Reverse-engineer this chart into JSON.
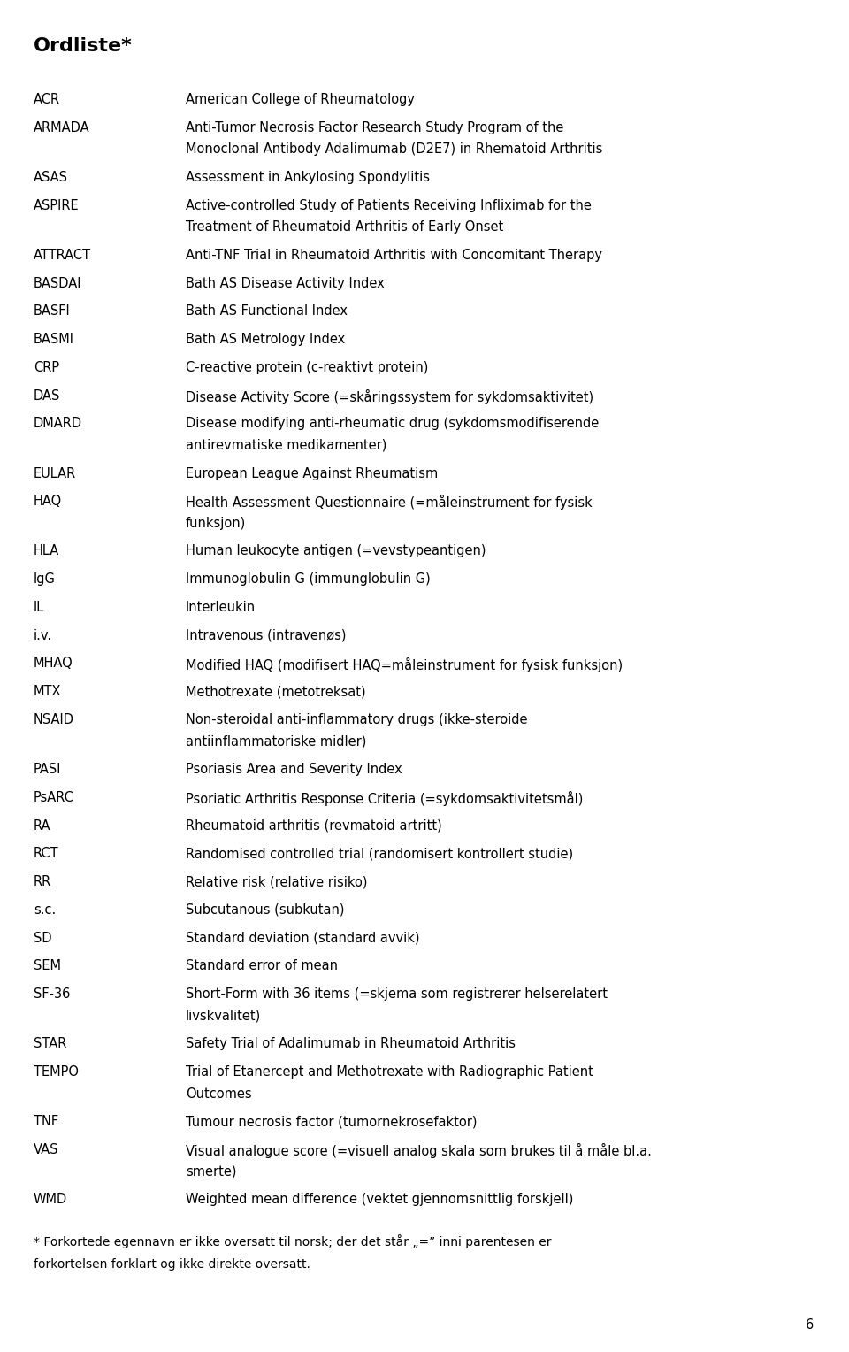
{
  "title": "Ordliste*",
  "page_number": "6",
  "background_color": "#ffffff",
  "text_color": "#000000",
  "title_fontsize": 16,
  "body_fontsize": 10.5,
  "entries": [
    [
      "ACR",
      "American College of Rheumatology"
    ],
    [
      "ARMADA",
      "Anti-Tumor Necrosis Factor Research Study Program of the\nMonoclonal Antibody Adalimumab (D2E7) in Rhematoid Arthritis"
    ],
    [
      "ASAS",
      "Assessment in Ankylosing Spondylitis"
    ],
    [
      "ASPIRE",
      "Active-controlled Study of Patients Receiving Infliximab for the\nTreatment of Rheumatoid Arthritis of Early Onset"
    ],
    [
      "ATTRACT",
      "Anti-TNF Trial in Rheumatoid Arthritis with Concomitant Therapy"
    ],
    [
      "BASDAI",
      "Bath AS Disease Activity Index"
    ],
    [
      "BASFI",
      "Bath AS Functional Index"
    ],
    [
      "BASMI",
      "Bath AS Metrology Index"
    ],
    [
      "CRP",
      "C-reactive protein (c-reaktivt protein)"
    ],
    [
      "DAS",
      "Disease Activity Score (=skåringssystem for sykdomsaktivitet)"
    ],
    [
      "DMARD",
      "Disease modifying anti-rheumatic drug (sykdomsmodifiserende\nantirevmatiske medikamenter)"
    ],
    [
      "EULAR",
      "European League Against Rheumatism"
    ],
    [
      "HAQ",
      "Health Assessment Questionnaire (=måleinstrument for fysisk\nfunksjon)"
    ],
    [
      "HLA",
      "Human leukocyte antigen (=vevstypeantigen)"
    ],
    [
      "IgG",
      "Immunoglobulin G (immunglobulin G)"
    ],
    [
      "IL",
      "Interleukin"
    ],
    [
      "i.v.",
      "Intravenous (intravenøs)"
    ],
    [
      "MHAQ",
      "Modified HAQ (modifisert HAQ=måleinstrument for fysisk funksjon)"
    ],
    [
      "MTX",
      "Methotrexate (metotreksat)"
    ],
    [
      "NSAID",
      "Non-steroidal anti-inflammatory drugs (ikke-steroide\nantiinflammatoriske midler)"
    ],
    [
      "PASI",
      "Psoriasis Area and Severity Index"
    ],
    [
      "PsARC",
      "Psoriatic Arthritis Response Criteria (=sykdomsaktivitetsmål)"
    ],
    [
      "RA",
      "Rheumatoid arthritis (revmatoid artritt)"
    ],
    [
      "RCT",
      "Randomised controlled trial (randomisert kontrollert studie)"
    ],
    [
      "RR",
      "Relative risk (relative risiko)"
    ],
    [
      "s.c.",
      "Subcutanous (subkutan)"
    ],
    [
      "SD",
      "Standard deviation (standard avvik)"
    ],
    [
      "SEM",
      "Standard error of mean"
    ],
    [
      "SF-36",
      "Short-Form with 36 items (=skjema som registrerer helserelatert\nlivskvalitet)"
    ],
    [
      "STAR",
      "Safety Trial of Adalimumab in Rheumatoid Arthritis"
    ],
    [
      "TEMPO",
      "Trial of Etanercept and Methotrexate with Radiographic Patient\nOutcomes"
    ],
    [
      "TNF",
      "Tumour necrosis factor (tumornekrosefaktor)"
    ],
    [
      "VAS",
      "Visual analogue score (=visuell analog skala som brukes til å måle bl.a.\nsmerte)"
    ],
    [
      "WMD",
      "Weighted mean difference (vektet gjennomsnittlig forskjell)"
    ]
  ],
  "footnote": "* Forkortede egennavn er ikke oversatt til norsk; der det står „=” inni parentesen er\nforkortelsen forklart og ikke direkte oversatt."
}
